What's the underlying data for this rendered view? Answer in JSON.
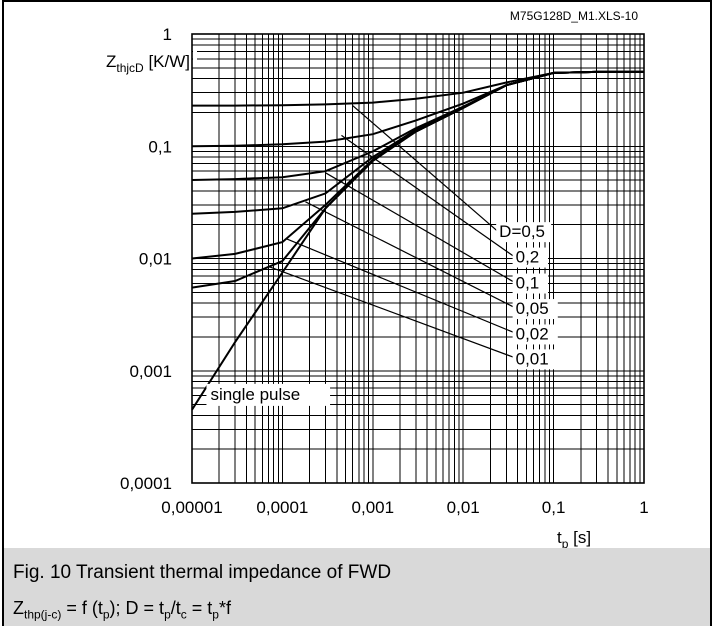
{
  "chart_data": {
    "type": "line",
    "title": "",
    "source_id": "M75G128D_M1.XLS-10",
    "ylabel": "Z_thjcD [K/W]",
    "ylabel_main": "Z",
    "ylabel_sub": "thjcD",
    "ylabel_unit": " [K/W]",
    "xlabel_main": "t",
    "xlabel_sub": "p",
    "xlabel_unit": " [s]",
    "xscale": "log",
    "yscale": "log",
    "xlim": [
      1e-05,
      1
    ],
    "ylim": [
      0.0001,
      1
    ],
    "grid": true,
    "x_ticks": [
      "0,00001",
      "0,0001",
      "0,001",
      "0,01",
      "0,1",
      "1"
    ],
    "y_ticks": [
      "0,0001",
      "0,001",
      "0,01",
      "0,1",
      "1"
    ],
    "series": [
      {
        "name": "single pulse",
        "x": [
          1e-05,
          3e-05,
          0.0001,
          0.0003,
          0.001,
          0.003,
          0.01,
          0.03,
          0.1,
          0.3,
          1
        ],
        "y": [
          0.00045,
          0.0018,
          0.0075,
          0.028,
          0.074,
          0.135,
          0.22,
          0.35,
          0.45,
          0.46,
          0.46
        ]
      },
      {
        "name": "D=0,01",
        "x": [
          1e-05,
          3e-05,
          0.0001,
          0.0003,
          0.001,
          0.003,
          0.01,
          0.03,
          0.1,
          0.3,
          1
        ],
        "y": [
          0.0055,
          0.0063,
          0.0095,
          0.028,
          0.075,
          0.135,
          0.22,
          0.35,
          0.45,
          0.46,
          0.46
        ]
      },
      {
        "name": "D=0,02",
        "x": [
          1e-05,
          3e-05,
          0.0001,
          0.0003,
          0.001,
          0.003,
          0.01,
          0.03,
          0.1,
          0.3,
          1
        ],
        "y": [
          0.01,
          0.011,
          0.014,
          0.03,
          0.076,
          0.136,
          0.22,
          0.35,
          0.45,
          0.46,
          0.46
        ]
      },
      {
        "name": "D=0,05",
        "x": [
          1e-05,
          3e-05,
          0.0001,
          0.0003,
          0.001,
          0.003,
          0.01,
          0.03,
          0.1,
          0.3,
          1
        ],
        "y": [
          0.025,
          0.026,
          0.028,
          0.038,
          0.08,
          0.14,
          0.222,
          0.35,
          0.45,
          0.46,
          0.46
        ]
      },
      {
        "name": "D=0,1",
        "x": [
          1e-05,
          3e-05,
          0.0001,
          0.0003,
          0.001,
          0.003,
          0.01,
          0.03,
          0.1,
          0.3,
          1
        ],
        "y": [
          0.05,
          0.051,
          0.053,
          0.06,
          0.09,
          0.145,
          0.225,
          0.35,
          0.45,
          0.46,
          0.46
        ]
      },
      {
        "name": "D=0,2",
        "x": [
          1e-05,
          3e-05,
          0.0001,
          0.0003,
          0.001,
          0.003,
          0.01,
          0.03,
          0.1,
          0.3,
          1
        ],
        "y": [
          0.1,
          0.101,
          0.104,
          0.11,
          0.128,
          0.17,
          0.24,
          0.35,
          0.45,
          0.46,
          0.46
        ]
      },
      {
        "name": "D=0,5",
        "x": [
          1e-05,
          3e-05,
          0.0001,
          0.0003,
          0.001,
          0.003,
          0.01,
          0.03,
          0.1,
          0.3,
          1
        ],
        "y": [
          0.23,
          0.23,
          0.232,
          0.236,
          0.245,
          0.265,
          0.3,
          0.37,
          0.45,
          0.46,
          0.46
        ]
      }
    ],
    "labels": [
      {
        "text": "D=0,5",
        "x": 0.025,
        "y": 0.0155
      },
      {
        "text": "0,2",
        "x": 0.038,
        "y": 0.0092
      },
      {
        "text": "0,1",
        "x": 0.038,
        "y": 0.0054
      },
      {
        "text": "0,05",
        "x": 0.038,
        "y": 0.0032
      },
      {
        "text": "0,02",
        "x": 0.038,
        "y": 0.0019
      },
      {
        "text": "0,01",
        "x": 0.038,
        "y": 0.00114
      }
    ],
    "pulse_label": {
      "text": "single pulse",
      "x": 1.6e-05,
      "y": 0.00055
    }
  },
  "caption": {
    "title": "Fig. 10 Transient thermal impedance of FWD",
    "formula_parts": [
      "Z",
      "thp(j-c)",
      " = f (t",
      "p",
      "); D = t",
      "p",
      "/t",
      "c",
      " = t",
      "p",
      "*f"
    ]
  }
}
